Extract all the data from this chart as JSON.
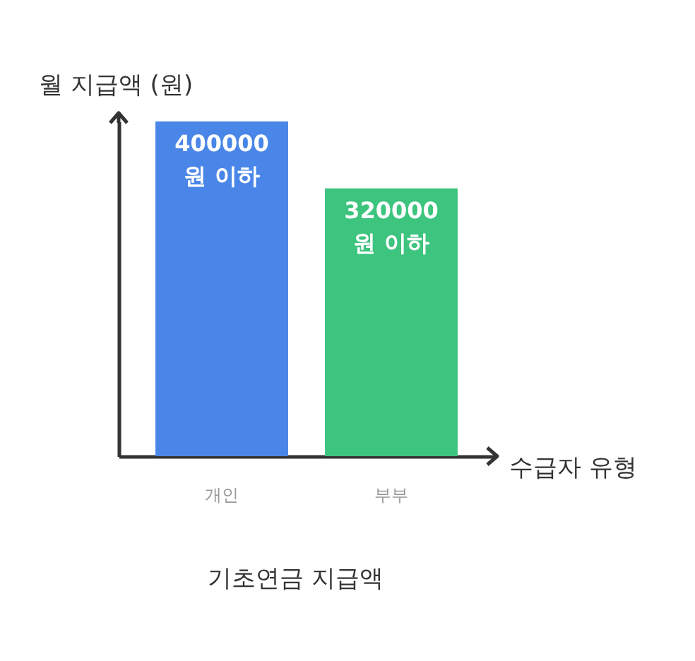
{
  "chart_data": {
    "type": "bar",
    "title": "기초연금 지급액",
    "xlabel": "수급자 유형",
    "ylabel": "월 지급액 (원)",
    "categories": [
      "개인",
      "부부"
    ],
    "values": [
      400000,
      320000
    ],
    "colors": [
      "#4a86e8",
      "#3dc47e"
    ],
    "value_labels": [
      "400000 원 이하",
      "320000 원 이하"
    ],
    "grid": false
  }
}
